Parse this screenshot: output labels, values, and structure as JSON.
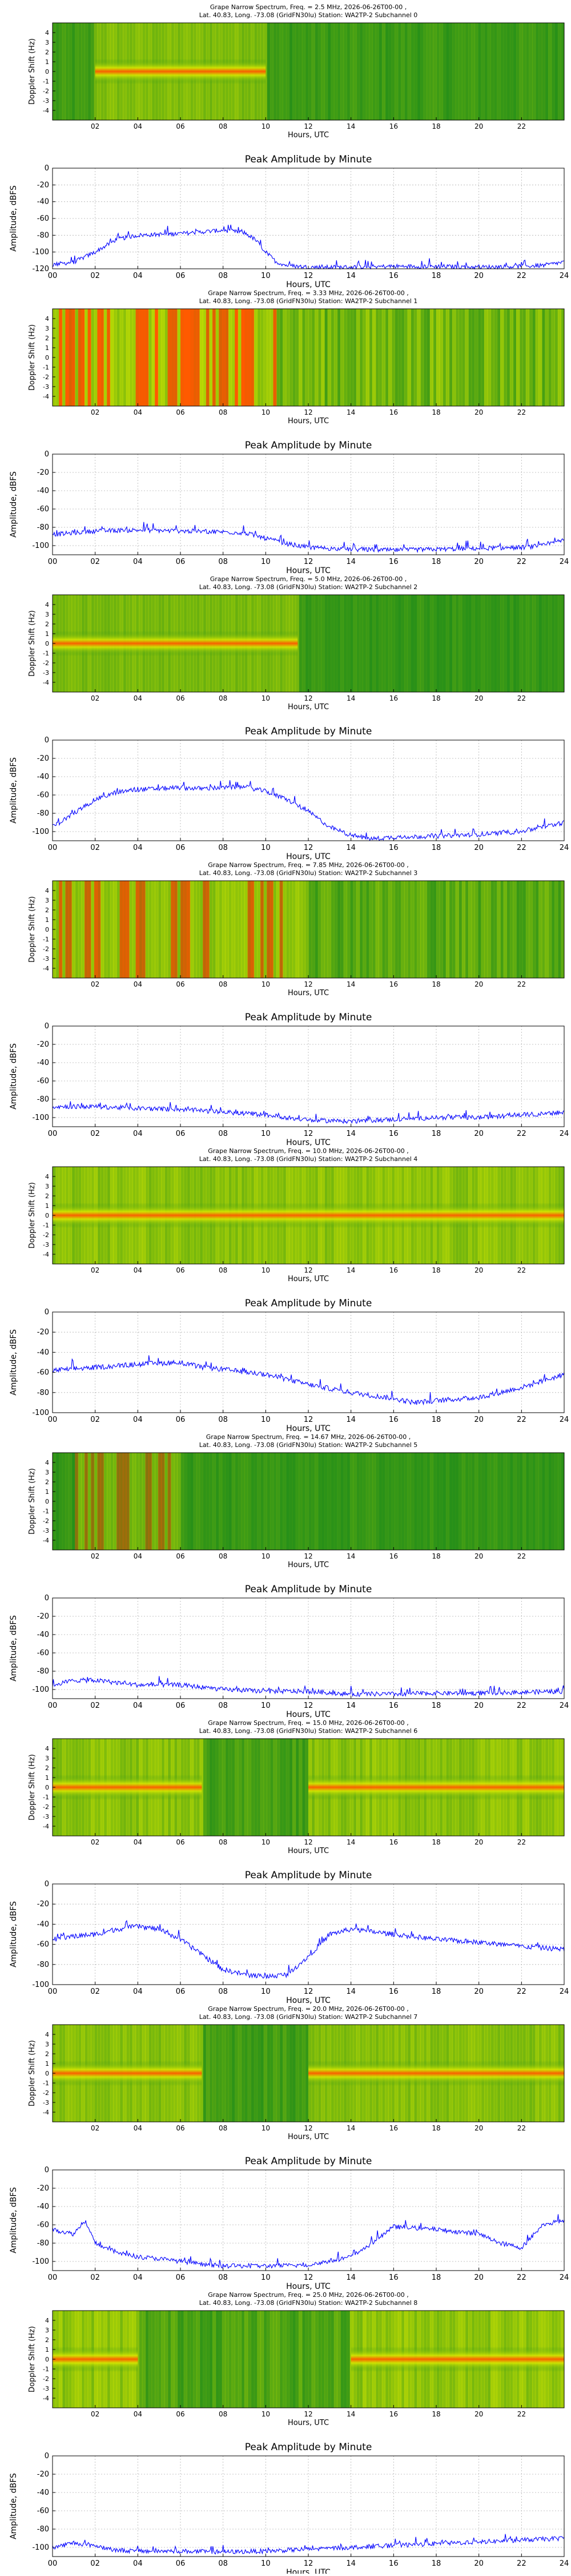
{
  "page": {
    "background": "#ffffff"
  },
  "colors": {
    "line": "#0000ff",
    "grid": "#b0b0b0",
    "spec_low": "#1b8a1b",
    "spec_mid": "#d8e800",
    "spec_high": "#ff5a00"
  },
  "chart_data": [
    {
      "type": "heatmap",
      "title": "Grape Narrow Spectrum, Freq. = 2.5 MHz, 2026-06-26T00-00 ,",
      "subtitle": "Lat.  40.83, Long. -73.08 (GridFN30lu) Station: WA2TP-2 Subchannel 0",
      "xlabel": "Hours, UTC",
      "ylabel": "Doppler Shift (Hz)",
      "xlim": [
        0,
        24
      ],
      "ylim": [
        -5,
        5
      ],
      "x_ticks": [
        "02",
        "04",
        "06",
        "08",
        "10",
        "12",
        "14",
        "16",
        "18",
        "20",
        "22"
      ],
      "y_ticks": [
        "4",
        "3",
        "2",
        "1",
        "0",
        "-1",
        "-2",
        "-3",
        "-4"
      ],
      "active": [
        [
          2,
          10
        ]
      ],
      "noise": 0.25,
      "carrier": true
    },
    {
      "type": "line",
      "title": "Peak Amplitude by Minute",
      "xlabel": "Hours, UTC",
      "ylabel": "Amplitude, dBFS",
      "xlim": [
        0,
        24
      ],
      "ylim": [
        -120,
        0
      ],
      "x_ticks": [
        "00",
        "02",
        "04",
        "06",
        "08",
        "10",
        "12",
        "14",
        "16",
        "18",
        "20",
        "22",
        "24"
      ],
      "y_ticks": [
        "0",
        "-20",
        "-40",
        "-60",
        "-80",
        "-100",
        "-120"
      ],
      "grid": true,
      "series": [
        {
          "x": [
            0,
            1,
            2,
            3,
            4,
            5,
            6,
            7,
            8,
            9,
            9.5,
            10,
            10.5,
            11,
            12,
            14,
            16,
            18,
            20,
            22,
            23,
            24
          ],
          "y": [
            -115,
            -112,
            -100,
            -85,
            -80,
            -79,
            -78,
            -76,
            -74,
            -77,
            -85,
            -100,
            -112,
            -116,
            -118,
            -118,
            -117,
            -117,
            -118,
            -117,
            -116,
            -112
          ]
        }
      ]
    },
    {
      "type": "heatmap",
      "title": "Grape Narrow Spectrum, Freq. = 3.33 MHz, 2026-06-26T00-00 ,",
      "subtitle": "Lat.  40.83, Long. -73.08 (GridFN30lu) Station: WA2TP-2 Subchannel 1",
      "xlabel": "Hours, UTC",
      "ylabel": "Doppler Shift (Hz)",
      "xlim": [
        0,
        24
      ],
      "ylim": [
        -5,
        5
      ],
      "x_ticks": [
        "02",
        "04",
        "06",
        "08",
        "10",
        "12",
        "14",
        "16",
        "18",
        "20",
        "22"
      ],
      "y_ticks": [
        "4",
        "3",
        "2",
        "1",
        "0",
        "-1",
        "-2",
        "-3",
        "-4"
      ],
      "active": [
        [
          0,
          10.5
        ]
      ],
      "noise": 0.7,
      "carrier": false
    },
    {
      "type": "line",
      "title": "Peak Amplitude by Minute",
      "xlabel": "Hours, UTC",
      "ylabel": "Amplitude, dBFS",
      "xlim": [
        0,
        24
      ],
      "ylim": [
        -110,
        0
      ],
      "x_ticks": [
        "00",
        "02",
        "04",
        "06",
        "08",
        "10",
        "12",
        "14",
        "16",
        "18",
        "20",
        "22",
        "24"
      ],
      "y_ticks": [
        "0",
        "-20",
        "-40",
        "-60",
        "-80",
        "-100"
      ],
      "grid": true,
      "series": [
        {
          "x": [
            0,
            2,
            4,
            6,
            8,
            9,
            10,
            11,
            12,
            14,
            16,
            18,
            20,
            22,
            23,
            24
          ],
          "y": [
            -88,
            -84,
            -83,
            -84,
            -85,
            -86,
            -92,
            -98,
            -102,
            -104,
            -105,
            -104,
            -103,
            -102,
            -100,
            -94
          ]
        }
      ]
    },
    {
      "type": "heatmap",
      "title": "Grape Narrow Spectrum, Freq. = 5.0 MHz, 2026-06-26T00-00 ,",
      "subtitle": "Lat.  40.83, Long. -73.08 (GridFN30lu) Station: WA2TP-2 Subchannel 2",
      "xlabel": "Hours, UTC",
      "ylabel": "Doppler Shift (Hz)",
      "xlim": [
        0,
        24
      ],
      "ylim": [
        -5,
        5
      ],
      "x_ticks": [
        "02",
        "04",
        "06",
        "08",
        "10",
        "12",
        "14",
        "16",
        "18",
        "20",
        "22"
      ],
      "y_ticks": [
        "4",
        "3",
        "2",
        "1",
        "0",
        "-1",
        "-2",
        "-3",
        "-4"
      ],
      "active": [
        [
          0,
          11.5
        ]
      ],
      "noise": 0.2,
      "carrier": true
    },
    {
      "type": "line",
      "title": "Peak Amplitude by Minute",
      "xlabel": "Hours, UTC",
      "ylabel": "Amplitude, dBFS",
      "xlim": [
        0,
        24
      ],
      "ylim": [
        -110,
        0
      ],
      "x_ticks": [
        "00",
        "02",
        "04",
        "06",
        "08",
        "10",
        "12",
        "14",
        "16",
        "18",
        "20",
        "22",
        "24"
      ],
      "y_ticks": [
        "0",
        "-20",
        "-40",
        "-60",
        "-80",
        "-100"
      ],
      "grid": true,
      "series": [
        {
          "x": [
            0,
            1,
            2,
            3,
            4,
            5,
            6,
            7,
            8,
            9,
            10,
            11,
            12,
            13,
            14,
            15,
            16,
            18,
            20,
            22,
            24
          ],
          "y": [
            -95,
            -80,
            -65,
            -57,
            -54,
            -53,
            -52,
            -53,
            -52,
            -51,
            -56,
            -65,
            -78,
            -95,
            -104,
            -108,
            -106,
            -105,
            -103,
            -100,
            -90
          ]
        }
      ]
    },
    {
      "type": "heatmap",
      "title": "Grape Narrow Spectrum, Freq. = 7.85 MHz, 2026-06-26T00-00 ,",
      "subtitle": "Lat.  40.83, Long. -73.08 (GridFN30lu) Station: WA2TP-2 Subchannel 3",
      "xlabel": "Hours, UTC",
      "ylabel": "Doppler Shift (Hz)",
      "xlim": [
        0,
        24
      ],
      "ylim": [
        -5,
        5
      ],
      "x_ticks": [
        "02",
        "04",
        "06",
        "08",
        "10",
        "12",
        "14",
        "16",
        "18",
        "20",
        "22"
      ],
      "y_ticks": [
        "4",
        "3",
        "2",
        "1",
        "0",
        "-1",
        "-2",
        "-3",
        "-4"
      ],
      "active": [
        [
          0,
          12
        ]
      ],
      "noise": 0.5,
      "carrier": false
    },
    {
      "type": "line",
      "title": "Peak Amplitude by Minute",
      "xlabel": "Hours, UTC",
      "ylabel": "Amplitude, dBFS",
      "xlim": [
        0,
        24
      ],
      "ylim": [
        -110,
        0
      ],
      "x_ticks": [
        "00",
        "02",
        "04",
        "06",
        "08",
        "10",
        "12",
        "14",
        "16",
        "18",
        "20",
        "22",
        "24"
      ],
      "y_ticks": [
        "0",
        "-20",
        "-40",
        "-60",
        "-80",
        "-100"
      ],
      "grid": true,
      "series": [
        {
          "x": [
            0,
            2,
            4,
            6,
            8,
            10,
            12,
            14,
            16,
            18,
            20,
            22,
            24
          ],
          "y": [
            -88,
            -88,
            -90,
            -91,
            -94,
            -97,
            -103,
            -104,
            -102,
            -100,
            -100,
            -97,
            -95
          ]
        }
      ]
    },
    {
      "type": "heatmap",
      "title": "Grape Narrow Spectrum, Freq. = 10.0 MHz, 2026-06-26T00-00 ,",
      "subtitle": "Lat.  40.83, Long. -73.08 (GridFN30lu) Station: WA2TP-2 Subchannel 4",
      "xlabel": "Hours, UTC",
      "ylabel": "Doppler Shift (Hz)",
      "xlim": [
        0,
        24
      ],
      "ylim": [
        -5,
        5
      ],
      "x_ticks": [
        "02",
        "04",
        "06",
        "08",
        "10",
        "12",
        "14",
        "16",
        "18",
        "20",
        "22"
      ],
      "y_ticks": [
        "4",
        "3",
        "2",
        "1",
        "0",
        "-1",
        "-2",
        "-3",
        "-4"
      ],
      "active": [
        [
          0,
          24
        ]
      ],
      "noise": 0.35,
      "carrier": true
    },
    {
      "type": "line",
      "title": "Peak Amplitude by Minute",
      "xlabel": "Hours, UTC",
      "ylabel": "Amplitude, dBFS",
      "xlim": [
        0,
        24
      ],
      "ylim": [
        -100,
        0
      ],
      "x_ticks": [
        "00",
        "02",
        "04",
        "06",
        "08",
        "10",
        "12",
        "14",
        "16",
        "18",
        "20",
        "22",
        "24"
      ],
      "y_ticks": [
        "0",
        "-20",
        "-40",
        "-60",
        "-80",
        "-100"
      ],
      "grid": true,
      "series": [
        {
          "x": [
            0,
            2,
            4,
            6,
            7,
            8,
            10,
            12,
            14,
            16,
            17,
            18,
            20,
            22,
            24
          ],
          "y": [
            -58,
            -55,
            -52,
            -50,
            -55,
            -57,
            -62,
            -72,
            -80,
            -86,
            -90,
            -88,
            -85,
            -75,
            -62
          ]
        }
      ]
    },
    {
      "type": "heatmap",
      "title": "Grape Narrow Spectrum, Freq. = 14.67 MHz, 2026-06-26T00-00 ,",
      "subtitle": "Lat.  40.83, Long. -73.08 (GridFN30lu) Station: WA2TP-2 Subchannel 5",
      "xlabel": "Hours, UTC",
      "ylabel": "Doppler Shift (Hz)",
      "xlim": [
        0,
        24
      ],
      "ylim": [
        -5,
        5
      ],
      "x_ticks": [
        "02",
        "04",
        "06",
        "08",
        "10",
        "12",
        "14",
        "16",
        "18",
        "20",
        "22"
      ],
      "y_ticks": [
        "4",
        "3",
        "2",
        "1",
        "0",
        "-1",
        "-2",
        "-3",
        "-4"
      ],
      "active": [
        [
          1,
          6
        ]
      ],
      "noise": 0.2,
      "carrier": false
    },
    {
      "type": "line",
      "title": "Peak Amplitude by Minute",
      "xlabel": "Hours, UTC",
      "ylabel": "Amplitude, dBFS",
      "xlim": [
        0,
        24
      ],
      "ylim": [
        -110,
        0
      ],
      "x_ticks": [
        "00",
        "02",
        "04",
        "06",
        "08",
        "10",
        "12",
        "14",
        "16",
        "18",
        "20",
        "22",
        "24"
      ],
      "y_ticks": [
        "0",
        "-20",
        "-40",
        "-60",
        "-80",
        "-100"
      ],
      "grid": true,
      "series": [
        {
          "x": [
            0,
            1,
            2,
            4,
            6,
            8,
            10,
            12,
            14,
            16,
            18,
            20,
            22,
            24
          ],
          "y": [
            -95,
            -90,
            -90,
            -95,
            -95,
            -100,
            -102,
            -102,
            -105,
            -105,
            -104,
            -104,
            -103,
            -102
          ]
        }
      ]
    },
    {
      "type": "heatmap",
      "title": "Grape Narrow Spectrum, Freq. = 15.0 MHz, 2026-06-26T00-00 ,",
      "subtitle": "Lat.  40.83, Long. -73.08 (GridFN30lu) Station: WA2TP-2 Subchannel 6",
      "xlabel": "Hours, UTC",
      "ylabel": "Doppler Shift (Hz)",
      "xlim": [
        0,
        24
      ],
      "ylim": [
        -5,
        5
      ],
      "x_ticks": [
        "02",
        "04",
        "06",
        "08",
        "10",
        "12",
        "14",
        "16",
        "18",
        "20",
        "22"
      ],
      "y_ticks": [
        "4",
        "3",
        "2",
        "1",
        "0",
        "-1",
        "-2",
        "-3",
        "-4"
      ],
      "active": [
        [
          0,
          7
        ],
        [
          12,
          24
        ]
      ],
      "noise": 0.35,
      "carrier": true
    },
    {
      "type": "line",
      "title": "Peak Amplitude by Minute",
      "xlabel": "Hours, UTC",
      "ylabel": "Amplitude, dBFS",
      "xlim": [
        0,
        24
      ],
      "ylim": [
        -100,
        0
      ],
      "x_ticks": [
        "00",
        "02",
        "04",
        "06",
        "08",
        "10",
        "12",
        "14",
        "16",
        "18",
        "20",
        "22",
        "24"
      ],
      "y_ticks": [
        "0",
        "-20",
        "-40",
        "-60",
        "-80",
        "-100"
      ],
      "grid": true,
      "series": [
        {
          "x": [
            0,
            1,
            2,
            3,
            4,
            5,
            6,
            7,
            8,
            9,
            10,
            11,
            12,
            13,
            14,
            16,
            18,
            20,
            22,
            24
          ],
          "y": [
            -55,
            -52,
            -50,
            -45,
            -42,
            -45,
            -55,
            -70,
            -85,
            -90,
            -92,
            -90,
            -72,
            -50,
            -45,
            -50,
            -55,
            -58,
            -62,
            -65
          ]
        }
      ]
    },
    {
      "type": "heatmap",
      "title": "Grape Narrow Spectrum, Freq. = 20.0 MHz, 2026-06-26T00-00 ,",
      "subtitle": "Lat.  40.83, Long. -73.08 (GridFN30lu) Station: WA2TP-2 Subchannel 7",
      "xlabel": "Hours, UTC",
      "ylabel": "Doppler Shift (Hz)",
      "xlim": [
        0,
        24
      ],
      "ylim": [
        -5,
        5
      ],
      "x_ticks": [
        "02",
        "04",
        "06",
        "08",
        "10",
        "12",
        "14",
        "16",
        "18",
        "20",
        "22"
      ],
      "y_ticks": [
        "4",
        "3",
        "2",
        "1",
        "0",
        "-1",
        "-2",
        "-3",
        "-4"
      ],
      "active": [
        [
          0,
          7
        ],
        [
          12,
          24
        ]
      ],
      "noise": 0.3,
      "carrier": true
    },
    {
      "type": "line",
      "title": "Peak Amplitude by Minute",
      "xlabel": "Hours, UTC",
      "ylabel": "Amplitude, dBFS",
      "xlim": [
        0,
        24
      ],
      "ylim": [
        -110,
        0
      ],
      "x_ticks": [
        "00",
        "02",
        "04",
        "06",
        "08",
        "10",
        "12",
        "14",
        "16",
        "18",
        "20",
        "22",
        "24"
      ],
      "y_ticks": [
        "0",
        "-20",
        "-40",
        "-60",
        "-80",
        "-100"
      ],
      "grid": true,
      "series": [
        {
          "x": [
            0,
            1,
            1.5,
            2,
            3,
            4,
            5,
            6,
            7,
            8,
            10,
            12,
            14,
            15,
            16,
            18,
            20,
            21,
            22,
            23,
            24
          ],
          "y": [
            -65,
            -70,
            -55,
            -80,
            -90,
            -95,
            -97,
            -100,
            -103,
            -105,
            -105,
            -104,
            -95,
            -80,
            -62,
            -65,
            -70,
            -80,
            -85,
            -60,
            -55
          ]
        }
      ]
    },
    {
      "type": "heatmap",
      "title": "Grape Narrow Spectrum, Freq. = 25.0 MHz, 2026-06-26T00-00 ,",
      "subtitle": "Lat.  40.83, Long. -73.08 (GridFN30lu) Station: WA2TP-2 Subchannel 8",
      "xlabel": "Hours, UTC",
      "ylabel": "Doppler Shift (Hz)",
      "xlim": [
        0,
        24
      ],
      "ylim": [
        -5,
        5
      ],
      "x_ticks": [
        "02",
        "04",
        "06",
        "08",
        "10",
        "12",
        "14",
        "16",
        "18",
        "20",
        "22"
      ],
      "y_ticks": [
        "4",
        "3",
        "2",
        "1",
        "0",
        "-1",
        "-2",
        "-3",
        "-4"
      ],
      "active": [
        [
          0,
          4
        ],
        [
          14,
          24
        ]
      ],
      "noise": 0.4,
      "carrier": true
    },
    {
      "type": "line",
      "title": "Peak Amplitude by Minute",
      "xlabel": "Hours, UTC",
      "ylabel": "Amplitude, dBFS",
      "xlim": [
        0,
        24
      ],
      "ylim": [
        -110,
        0
      ],
      "x_ticks": [
        "00",
        "02",
        "04",
        "06",
        "08",
        "10",
        "12",
        "14",
        "16",
        "18",
        "20",
        "22",
        "24"
      ],
      "y_ticks": [
        "0",
        "-20",
        "-40",
        "-60",
        "-80",
        "-100"
      ],
      "grid": true,
      "series": [
        {
          "x": [
            0,
            1,
            2,
            3,
            4,
            6,
            8,
            10,
            12,
            14,
            16,
            18,
            20,
            22,
            24
          ],
          "y": [
            -100,
            -95,
            -98,
            -103,
            -104,
            -104,
            -105,
            -104,
            -102,
            -100,
            -98,
            -96,
            -94,
            -92,
            -90
          ]
        }
      ]
    }
  ]
}
